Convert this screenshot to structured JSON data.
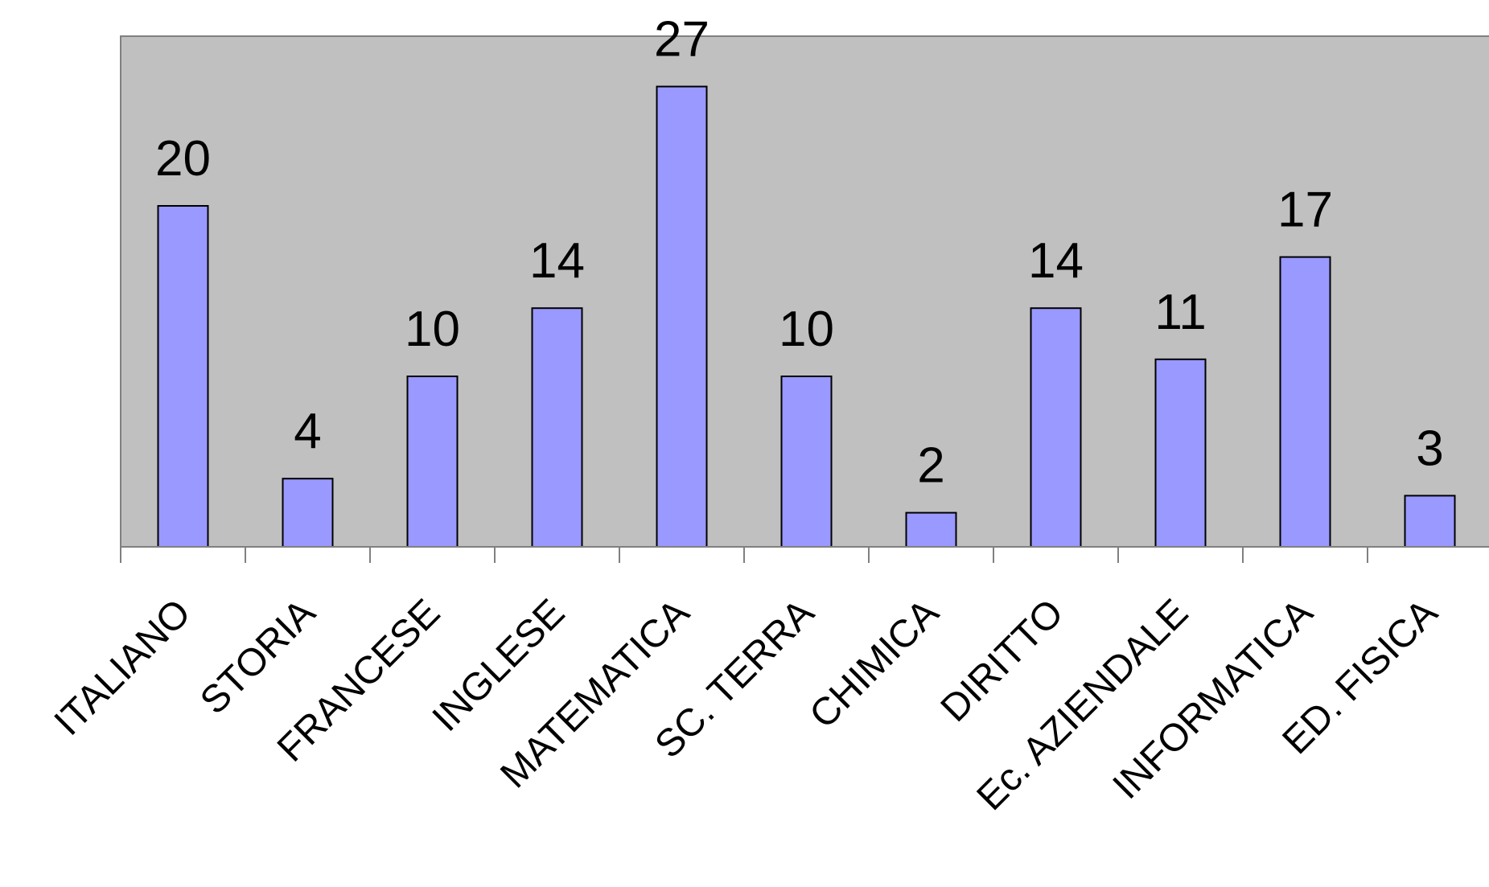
{
  "chart_data": {
    "type": "bar",
    "title": "",
    "xlabel": "",
    "ylabel": "",
    "categories": [
      "ITALIANO",
      "STORIA",
      "FRANCESE",
      "INGLESE",
      "MATEMATICA",
      "SC. TERRA",
      "CHIMICA",
      "DIRITTO",
      "Ec. AZIENDALE",
      "INFORMATICA",
      "ED. FISICA"
    ],
    "values": [
      20,
      4,
      10,
      14,
      27,
      10,
      2,
      14,
      11,
      17,
      3
    ],
    "ylim": [
      0,
      30
    ],
    "grid": false,
    "legend": "none",
    "data_labels": true,
    "colors": {
      "bar": "#9999ff",
      "plot_background": "#c0c0c0",
      "page_background": "#ffffff"
    }
  }
}
